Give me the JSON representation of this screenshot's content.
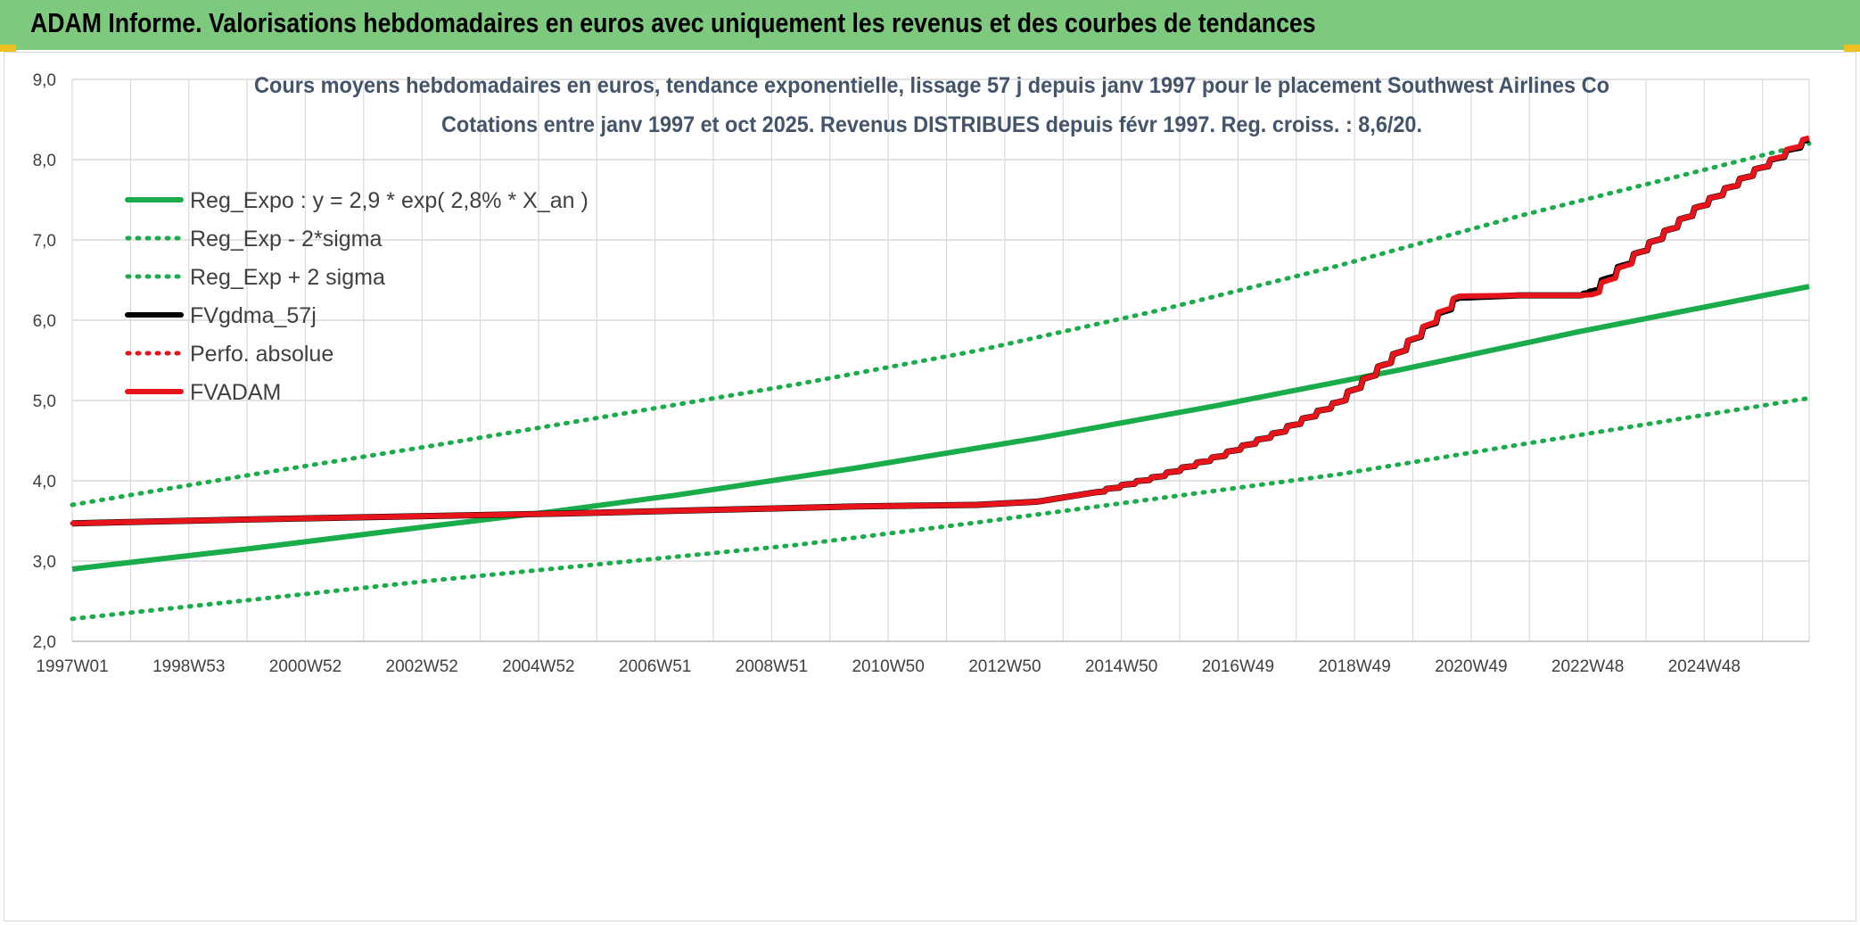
{
  "header": {
    "title": "ADAM Informe. Valorisations hebdomadaires en euros avec uniquement les revenus et des courbes de tendances"
  },
  "colors": {
    "header_bg": "#7dc97d",
    "reg_green": "#1aab4b",
    "adam_red": "#e8141b",
    "gdma_black": "#000000",
    "grid": "#d9d9d9"
  },
  "chart_data": {
    "type": "line",
    "title": "Cours moyens hebdomadaires en euros, tendance exponentielle, lissage 57 j depuis janv 1997 pour le placement Southwest Airlines Co",
    "subtitle": "Cotations entre janv 1997 et oct 2025. Revenus DISTRIBUES depuis févr 1997. Reg. croiss. : 8,6/20.",
    "xlabel": "",
    "ylabel": "",
    "ylim": [
      2.0,
      9.0
    ],
    "yticks": [
      "2,0",
      "3,0",
      "4,0",
      "5,0",
      "6,0",
      "7,0",
      "8,0",
      "9,0"
    ],
    "xlim": [
      1997.0,
      2025.8
    ],
    "xticks": [
      "1997W01",
      "1998W53",
      "2000W52",
      "2002W52",
      "2004W52",
      "2006W51",
      "2008W51",
      "2010W50",
      "2012W50",
      "2014W50",
      "2016W49",
      "2018W49",
      "2020W49",
      "2022W48",
      "2024W48"
    ],
    "grid": true,
    "legend_position": "top-left",
    "series": [
      {
        "name": "Reg_Expo : y = 2,9 * exp( 2,8% *  X_an )",
        "style": "solid",
        "color": "#1aab4b",
        "x": [
          1997.0,
          2000.0,
          2003.0,
          2005.0,
          2007.0,
          2010.0,
          2013.0,
          2016.0,
          2019.0,
          2022.0,
          2025.8
        ],
        "y": [
          2.9,
          3.16,
          3.44,
          3.62,
          3.82,
          4.16,
          4.53,
          4.94,
          5.38,
          5.86,
          6.42
        ]
      },
      {
        "name": "Reg_Exp - 2*sigma",
        "style": "dotted",
        "color": "#1aab4b",
        "x": [
          1997.0,
          2000.0,
          2003.0,
          2006.0,
          2009.0,
          2012.0,
          2015.0,
          2018.0,
          2021.0,
          2025.8
        ],
        "y": [
          2.28,
          2.52,
          2.76,
          2.98,
          3.2,
          3.48,
          3.78,
          4.08,
          4.45,
          5.03
        ]
      },
      {
        "name": "Reg_Exp + 2 sigma",
        "style": "dotted",
        "color": "#1aab4b",
        "x": [
          1997.0,
          2000.0,
          2003.0,
          2006.0,
          2009.0,
          2012.0,
          2015.0,
          2018.0,
          2021.0,
          2025.8
        ],
        "y": [
          3.7,
          4.08,
          4.44,
          4.82,
          5.2,
          5.62,
          6.12,
          6.68,
          7.3,
          8.2
        ]
      },
      {
        "name": "FVgdma_57j",
        "style": "solid",
        "color": "#000000",
        "x": [
          1997.0,
          2000.0,
          2005.0,
          2010.0,
          2012.0,
          2013.0,
          2014.0,
          2015.0,
          2016.0,
          2017.0,
          2018.0,
          2019.0,
          2020.0,
          2021.0,
          2022.0,
          2022.2,
          2023.0,
          2024.0,
          2025.0,
          2025.8
        ],
        "y": [
          3.47,
          3.52,
          3.59,
          3.68,
          3.7,
          3.74,
          3.86,
          4.05,
          4.3,
          4.6,
          4.98,
          5.6,
          6.28,
          6.31,
          6.31,
          6.36,
          6.85,
          7.42,
          7.9,
          8.25
        ]
      },
      {
        "name": "Perfo. absolue",
        "style": "dotted",
        "color": "#e8141b",
        "x": [
          1997.0,
          2000.0,
          2005.0,
          2010.0,
          2012.0,
          2013.0,
          2014.0,
          2015.0,
          2016.0,
          2017.0,
          2018.0,
          2019.0,
          2020.0,
          2021.0,
          2022.0,
          2022.2,
          2023.0,
          2024.0,
          2025.0,
          2025.8
        ],
        "y": [
          3.47,
          3.52,
          3.59,
          3.68,
          3.7,
          3.74,
          3.86,
          4.05,
          4.3,
          4.6,
          4.98,
          5.6,
          6.3,
          6.31,
          6.31,
          6.32,
          6.85,
          7.42,
          7.9,
          8.27
        ]
      },
      {
        "name": "FVADAM",
        "style": "solid",
        "color": "#e8141b",
        "x": [
          1997.0,
          2000.0,
          2005.0,
          2010.0,
          2012.0,
          2013.0,
          2014.0,
          2015.0,
          2016.0,
          2017.0,
          2018.0,
          2019.0,
          2020.0,
          2021.0,
          2022.0,
          2022.2,
          2023.0,
          2024.0,
          2025.0,
          2025.8
        ],
        "y": [
          3.47,
          3.52,
          3.59,
          3.68,
          3.7,
          3.74,
          3.86,
          4.05,
          4.3,
          4.6,
          4.98,
          5.6,
          6.3,
          6.31,
          6.31,
          6.32,
          6.85,
          7.42,
          7.9,
          8.27
        ]
      }
    ]
  }
}
